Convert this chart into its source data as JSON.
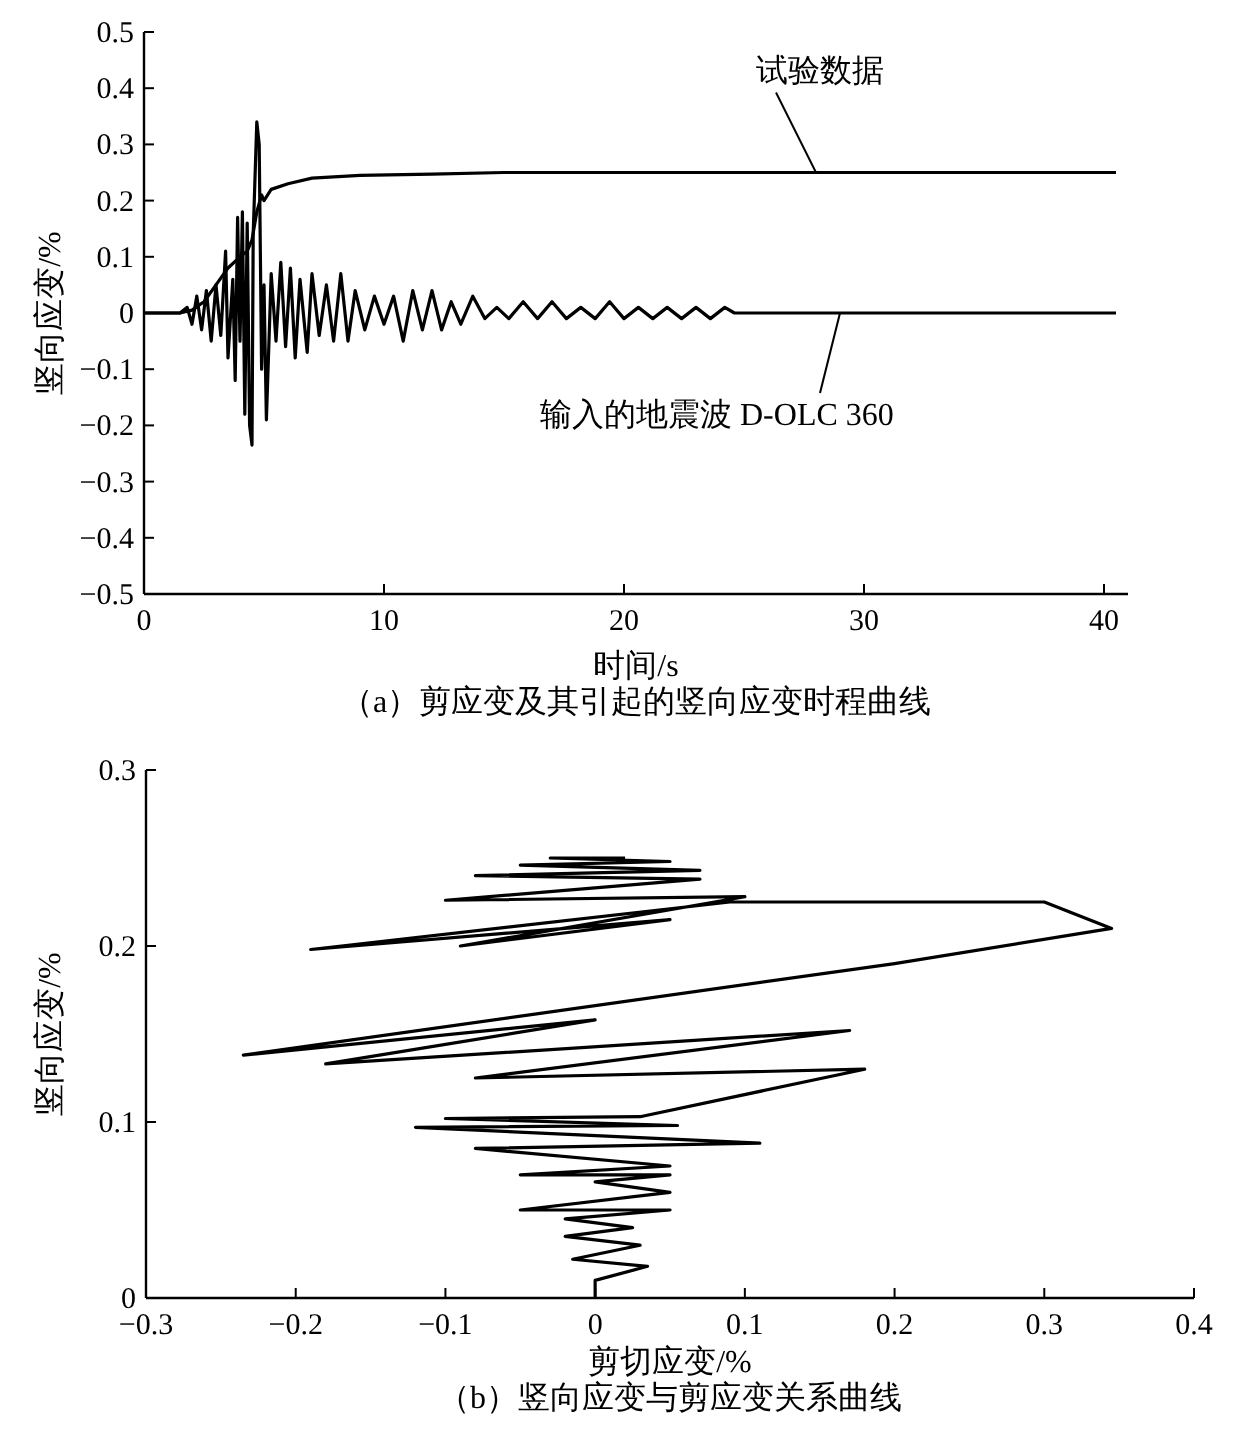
{
  "chart_data": [
    {
      "type": "line",
      "title": "（a）剪应变及其引起的竖向应变时程曲线",
      "xlabel": "时间/s",
      "ylabel": "竖向应变/%",
      "xlim": [
        0,
        41
      ],
      "xticks": [
        0,
        10,
        20,
        30,
        40
      ],
      "ylim": [
        -0.5,
        0.5
      ],
      "yticks": [
        {
          "value": -0.5,
          "label": "−0.5"
        },
        {
          "value": -0.4,
          "label": "−0.4"
        },
        {
          "value": -0.3,
          "label": "−0.3"
        },
        {
          "value": -0.2,
          "label": "−0.2"
        },
        {
          "value": -0.1,
          "label": "−0.1"
        },
        0,
        0.1,
        0.2,
        0.3,
        0.4,
        0.5
      ],
      "grid": false,
      "line_style": "solid",
      "annotations": [
        {
          "text": "试验数据",
          "x": 28,
          "y": 0.25
        },
        {
          "text": "输入的地震波 D-OLC 360",
          "x": 29,
          "y": 0
        }
      ],
      "series": [
        {
          "color": "#000000",
          "x": [
            0,
            1.5,
            2.0,
            2.5,
            3.0,
            3.5,
            4.0,
            4.3,
            4.5,
            4.7,
            4.9,
            5.0,
            5.3,
            6.0,
            7.0,
            9.0,
            12,
            15,
            25,
            40.5
          ],
          "values": [
            0,
            0,
            0.005,
            0.02,
            0.05,
            0.08,
            0.1,
            0.11,
            0.13,
            0.18,
            0.21,
            0.2,
            0.22,
            0.23,
            0.24,
            0.245,
            0.247,
            0.25,
            0.25,
            0.25
          ]
        },
        {
          "color": "#000000",
          "x": [
            0,
            1.5,
            1.8,
            2.0,
            2.2,
            2.4,
            2.6,
            2.8,
            3.0,
            3.2,
            3.4,
            3.5,
            3.7,
            3.8,
            3.9,
            4.0,
            4.1,
            4.2,
            4.3,
            4.4,
            4.5,
            4.55,
            4.7,
            4.8,
            4.9,
            5.0,
            5.1,
            5.3,
            5.5,
            5.7,
            5.9,
            6.1,
            6.3,
            6.5,
            6.8,
            7.0,
            7.3,
            7.6,
            7.9,
            8.2,
            8.5,
            8.8,
            9.2,
            9.6,
            10.0,
            10.4,
            10.8,
            11.2,
            11.6,
            12.0,
            12.4,
            12.8,
            13.2,
            13.7,
            14.2,
            14.7,
            15.2,
            15.8,
            16.4,
            17.0,
            17.6,
            18.2,
            18.8,
            19.4,
            20.0,
            20.6,
            21.2,
            21.8,
            22.4,
            23.0,
            23.6,
            24.2,
            24.6,
            40.5
          ],
          "values": [
            0,
            0,
            0.01,
            -0.02,
            0.03,
            -0.03,
            0.04,
            -0.05,
            0.05,
            -0.04,
            0.11,
            -0.08,
            0.06,
            -0.12,
            0.17,
            -0.05,
            0.18,
            -0.18,
            0.16,
            -0.2,
            -0.235,
            0.14,
            0.34,
            0.3,
            -0.1,
            0.05,
            -0.19,
            0.07,
            -0.05,
            0.09,
            -0.06,
            0.08,
            -0.08,
            0.06,
            -0.07,
            0.07,
            -0.04,
            0.05,
            -0.05,
            0.07,
            -0.05,
            0.04,
            -0.03,
            0.03,
            -0.02,
            0.03,
            -0.05,
            0.04,
            -0.03,
            0.04,
            -0.03,
            0.02,
            -0.02,
            0.03,
            -0.01,
            0.01,
            -0.01,
            0.02,
            -0.01,
            0.02,
            -0.01,
            0.01,
            -0.01,
            0.02,
            -0.01,
            0.01,
            -0.01,
            0.01,
            -0.01,
            0.01,
            -0.01,
            0.01,
            0,
            0
          ]
        }
      ]
    },
    {
      "type": "line",
      "title": "（b）竖向应变与剪应变关系曲线",
      "xlabel": "剪切应变/%",
      "ylabel": "竖向应变/%",
      "xlim": [
        -0.3,
        0.4
      ],
      "xticks": [
        {
          "value": -0.3,
          "label": "−0.3"
        },
        {
          "value": -0.2,
          "label": "−0.2"
        },
        {
          "value": -0.1,
          "label": "−0.1"
        },
        0,
        0.1,
        0.2,
        0.3,
        0.4
      ],
      "ylim": [
        0,
        0.3
      ],
      "yticks": [
        0,
        0.1,
        0.2,
        0.3
      ],
      "grid": false,
      "line_style": "solid",
      "series": [
        {
          "color": "#000000",
          "x": [
            0,
            0,
            0.035,
            -0.015,
            0.03,
            -0.02,
            0.025,
            -0.02,
            0.05,
            -0.05,
            0.05,
            0.0,
            0.05,
            -0.05,
            0.05,
            -0.08,
            0.11,
            -0.12,
            0.055,
            -0.1,
            0.03,
            0.18,
            -0.08,
            0.17,
            -0.18,
            0.0,
            -0.235,
            0.2,
            0.345,
            0.3,
            0.09,
            -0.19,
            0.05,
            -0.09,
            0.1,
            -0.1,
            0.07,
            -0.08,
            0.07,
            -0.05,
            0.05,
            -0.03,
            0.02
          ],
          "values": [
            0,
            0.01,
            0.018,
            0.022,
            0.03,
            0.035,
            0.04,
            0.045,
            0.05,
            0.05,
            0.06,
            0.066,
            0.07,
            0.07,
            0.075,
            0.085,
            0.088,
            0.097,
            0.098,
            0.102,
            0.103,
            0.13,
            0.125,
            0.152,
            0.133,
            0.158,
            0.138,
            0.19,
            0.21,
            0.225,
            0.225,
            0.198,
            0.215,
            0.2,
            0.228,
            0.226,
            0.238,
            0.24,
            0.243,
            0.246,
            0.248,
            0.25,
            0.25
          ]
        }
      ]
    }
  ]
}
